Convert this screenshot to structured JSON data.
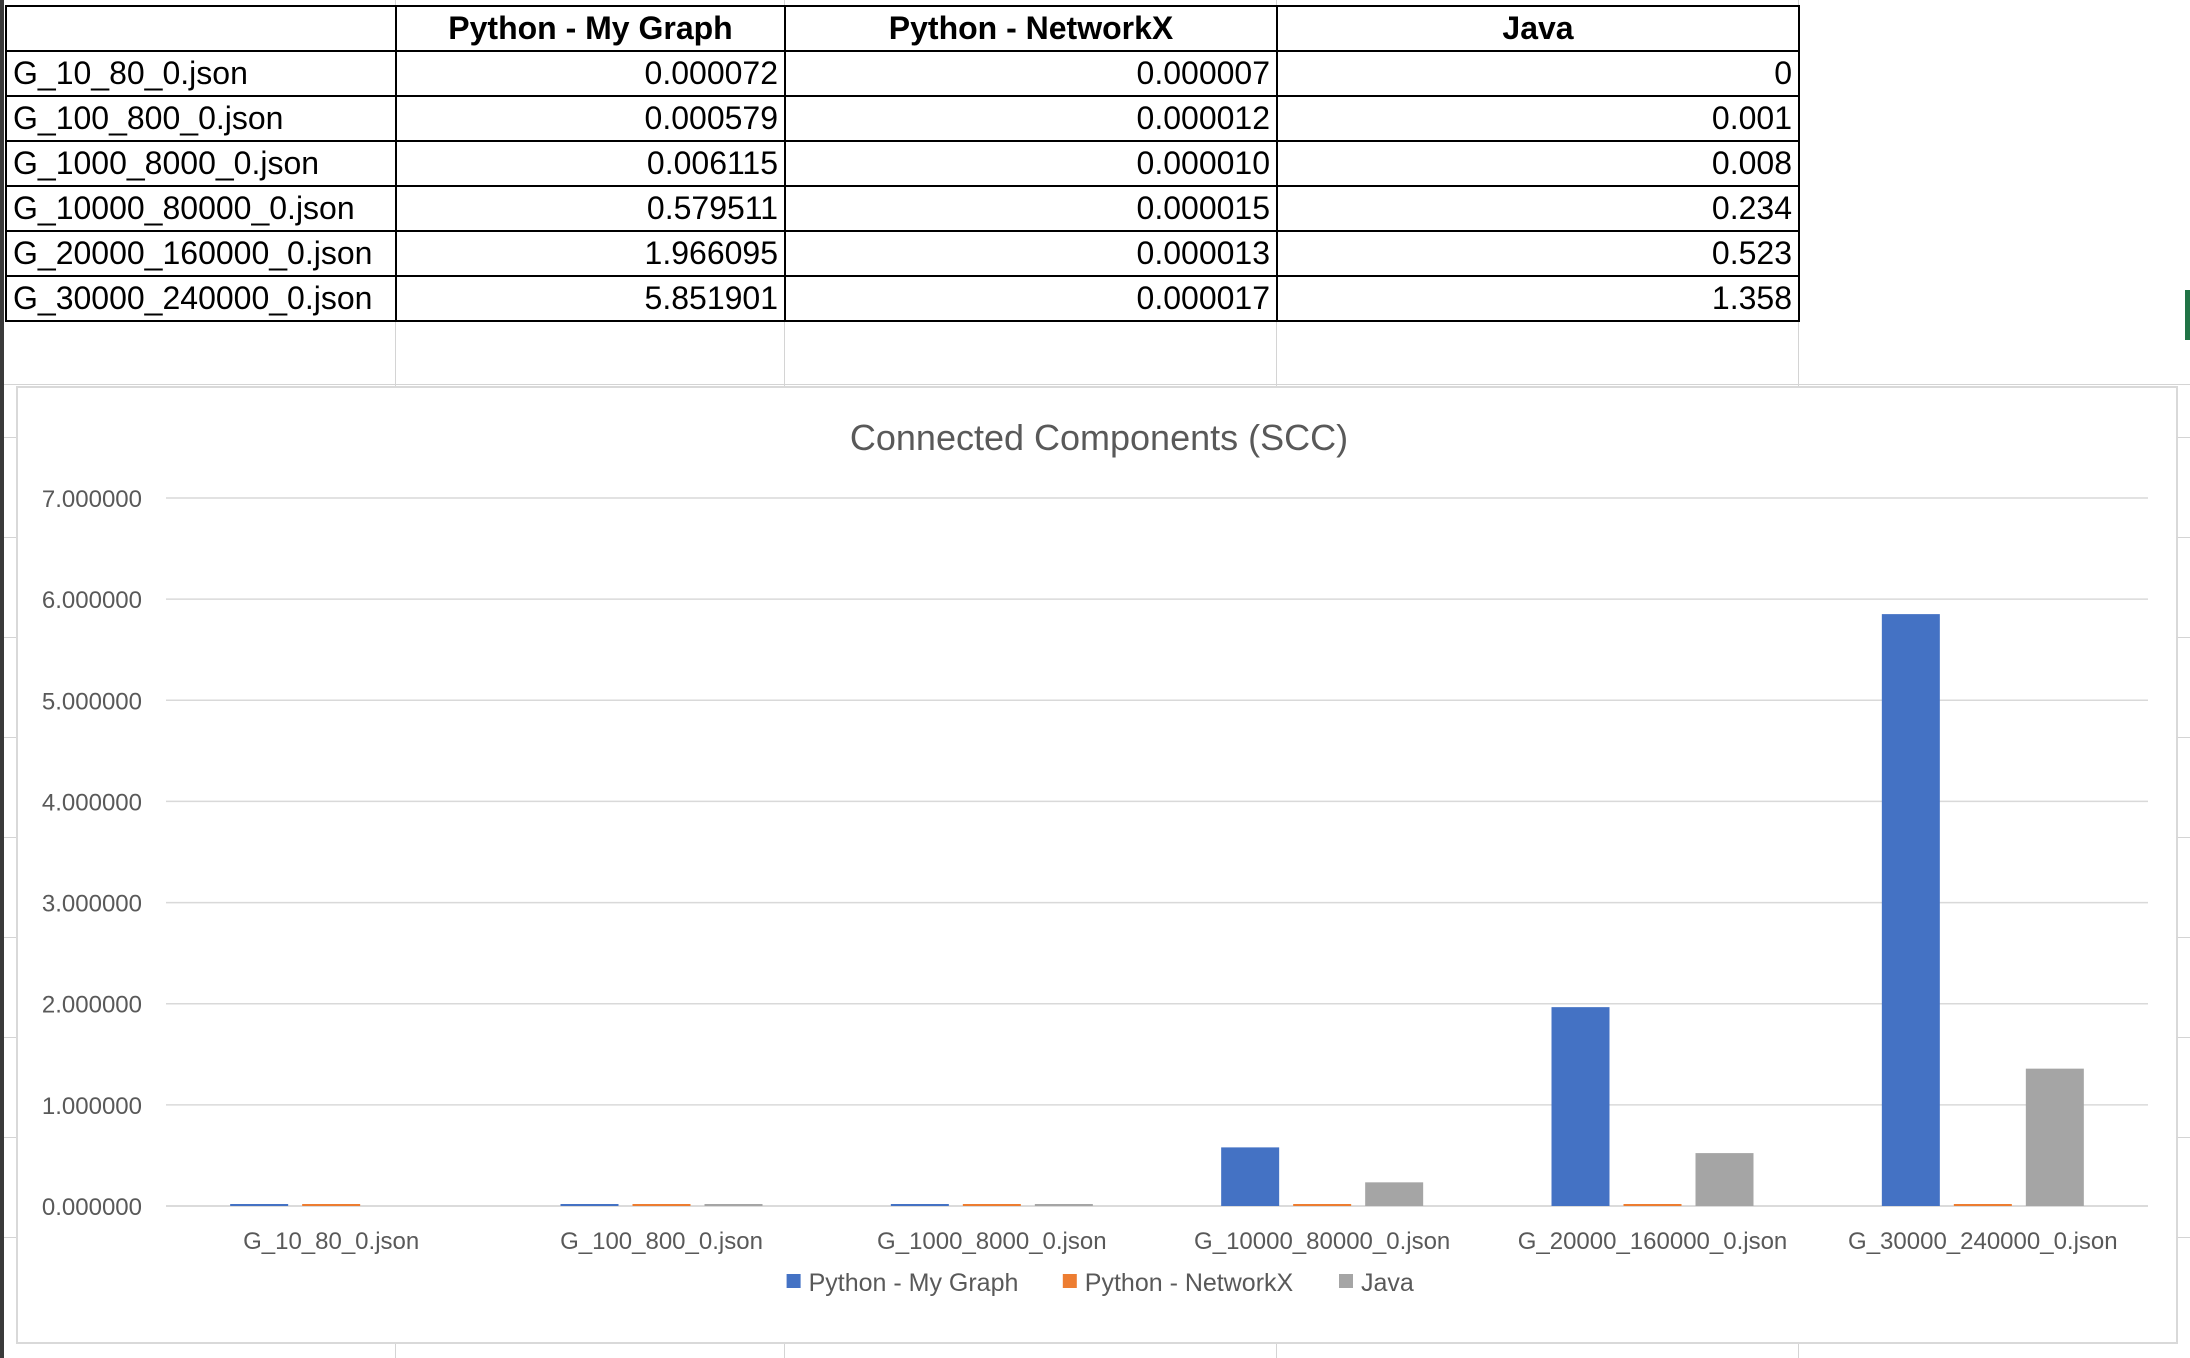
{
  "table": {
    "headers": [
      "",
      "Python - My Graph",
      "Python - NetworkX",
      "Java"
    ],
    "rows": [
      {
        "name": "G_10_80_0.json",
        "my_graph": "0.000072",
        "networkx": "0.000007",
        "java": "0"
      },
      {
        "name": "G_100_800_0.json",
        "my_graph": "0.000579",
        "networkx": "0.000012",
        "java": "0.001"
      },
      {
        "name": "G_1000_8000_0.json",
        "my_graph": "0.006115",
        "networkx": "0.000010",
        "java": "0.008"
      },
      {
        "name": "G_10000_80000_0.json",
        "my_graph": "0.579511",
        "networkx": "0.000015",
        "java": "0.234"
      },
      {
        "name": "G_20000_160000_0.json",
        "my_graph": "1.966095",
        "networkx": "0.000013",
        "java": "0.523"
      },
      {
        "name": "G_30000_240000_0.json",
        "my_graph": "5.851901",
        "networkx": "0.000017",
        "java": "1.358"
      }
    ]
  },
  "chart_data": {
    "type": "bar",
    "title": "Connected Components (SCC)",
    "xlabel": "",
    "ylabel": "",
    "ylim": [
      0,
      7
    ],
    "yticks": [
      "0.000000",
      "1.000000",
      "2.000000",
      "3.000000",
      "4.000000",
      "5.000000",
      "6.000000",
      "7.000000"
    ],
    "categories": [
      "G_10_80_0.json",
      "G_100_800_0.json",
      "G_1000_8000_0.json",
      "G_10000_80000_0.json",
      "G_20000_160000_0.json",
      "G_30000_240000_0.json"
    ],
    "series": [
      {
        "name": "Python - My Graph",
        "color": "#4472C4",
        "values": [
          7.2e-05,
          0.000579,
          0.006115,
          0.579511,
          1.966095,
          5.851901
        ]
      },
      {
        "name": "Python - NetworkX",
        "color": "#ED7D31",
        "values": [
          7e-06,
          1.2e-05,
          1e-05,
          1.5e-05,
          1.3e-05,
          1.7e-05
        ]
      },
      {
        "name": "Java",
        "color": "#A5A5A5",
        "values": [
          0,
          0.001,
          0.008,
          0.234,
          0.523,
          1.358
        ]
      }
    ],
    "legend_position": "bottom",
    "gridlines": true
  }
}
